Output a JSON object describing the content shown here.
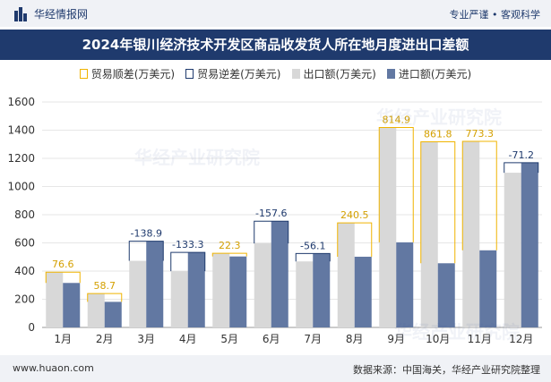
{
  "header": {
    "brand": "华经情报网",
    "slogan": "专业严谨 • 客观科学"
  },
  "title": "2024年银川经济技术开发区商品收发货人所在地月度进出口差额",
  "legend": {
    "pos": "贸易顺差(万美元)",
    "neg": "贸易逆差(万美元)",
    "exp": "出口额(万美元)",
    "imp": "进口额(万美元)"
  },
  "footer": {
    "website": "www.huaon.com",
    "source": "数据来源：中国海关，华经产业研究院整理"
  },
  "watermark": "华经产业研究院",
  "colors": {
    "title_bg": "#1f3a6d",
    "export": "#d8d8d8",
    "import": "#6278a2",
    "surplus": "#f0b400",
    "deficit": "#1f3a6d",
    "surplus_label": "#d4a000",
    "deficit_label": "#1f3a6d"
  },
  "chart_data": {
    "type": "bar",
    "categories": [
      "1月",
      "2月",
      "3月",
      "4月",
      "5月",
      "6月",
      "7月",
      "8月",
      "9月",
      "10月",
      "11月",
      "12月"
    ],
    "series": [
      {
        "name": "出口额(万美元)",
        "values": [
          392.3,
          240.3,
          472.7,
          399.3,
          525.9,
          596.4,
          468.5,
          742.3,
          1418.9,
          1317.2,
          1320.6,
          1098.0
        ]
      },
      {
        "name": "进口额(万美元)",
        "values": [
          315.7,
          181.6,
          611.6,
          532.6,
          503.6,
          754.0,
          524.6,
          501.8,
          604.0,
          455.4,
          547.3,
          1169.2
        ]
      }
    ],
    "balance": [
      76.6,
      58.7,
      -138.9,
      -133.3,
      22.3,
      -157.6,
      -56.1,
      240.5,
      814.9,
      861.8,
      773.3,
      -71.2
    ],
    "balance_labels": [
      "76.6",
      "58.7",
      "-138.9",
      "-133.3",
      "22.3",
      "-157.6",
      "-56.1",
      "240.5",
      "814.9",
      "861.8",
      "773.3",
      "-71.2"
    ],
    "ylim": [
      0,
      1600
    ],
    "yticks": [
      0,
      200,
      400,
      600,
      800,
      1000,
      1200,
      1400,
      1600
    ],
    "grid": true,
    "legend_position": "top"
  }
}
